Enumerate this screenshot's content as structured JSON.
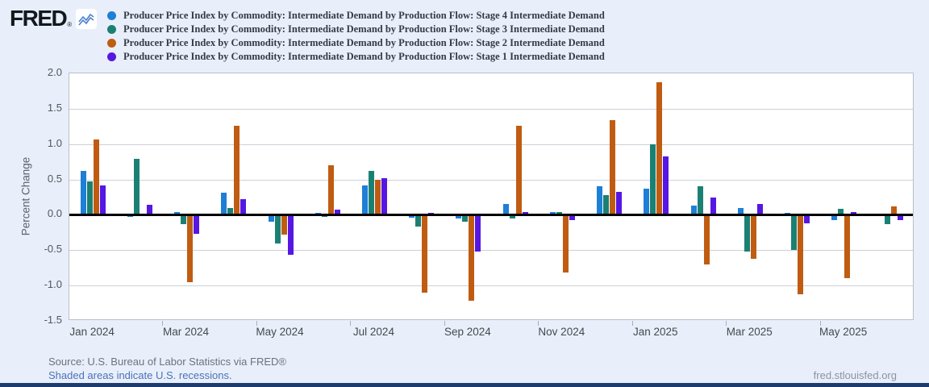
{
  "logo": {
    "text": "FRED",
    "registered": "®",
    "mark_icon": "line-chart-zigzag-icon"
  },
  "legend": {
    "items": [
      {
        "label": "Producer Price Index by Commodity: Intermediate Demand by Production Flow: Stage 4 Intermediate Demand",
        "color": "#1e7fd6"
      },
      {
        "label": "Producer Price Index by Commodity: Intermediate Demand by Production Flow: Stage 3 Intermediate Demand",
        "color": "#1b8074"
      },
      {
        "label": "Producer Price Index by Commodity: Intermediate Demand by Production Flow: Stage 2 Intermediate Demand",
        "color": "#c05c12"
      },
      {
        "label": "Producer Price Index by Commodity: Intermediate Demand by Production Flow: Stage 1 Intermediate Demand",
        "color": "#5617e3"
      }
    ]
  },
  "chart_data": {
    "type": "bar",
    "title": "",
    "ylabel": "Percent Change",
    "xlabel": "",
    "ylim": [
      -1.5,
      2.0
    ],
    "yticks": [
      "2.0",
      "1.5",
      "1.0",
      "0.5",
      "0.0",
      "-0.5",
      "-1.0",
      "-1.5"
    ],
    "grid": true,
    "legend_position": "top",
    "categories": [
      "Jan 2024",
      "Feb 2024",
      "Mar 2024",
      "Apr 2024",
      "May 2024",
      "Jun 2024",
      "Jul 2024",
      "Aug 2024",
      "Sep 2024",
      "Oct 2024",
      "Nov 2024",
      "Dec 2024",
      "Jan 2025",
      "Feb 2025",
      "Mar 2025",
      "Apr 2025",
      "May 2025",
      "Jun 2025"
    ],
    "x_tick_labels": [
      "Jan 2024",
      "Mar 2024",
      "May 2024",
      "Jul 2024",
      "Sep 2024",
      "Nov 2024",
      "Jan 2025",
      "Mar 2025",
      "May 2025"
    ],
    "series": [
      {
        "name": "Stage 4 Intermediate Demand",
        "color": "#1e7fd6",
        "values": [
          0.62,
          -0.03,
          0.04,
          0.31,
          -0.1,
          0.03,
          0.42,
          -0.04,
          -0.05,
          0.15,
          0.04,
          0.4,
          0.37,
          0.13,
          0.1,
          0.03,
          -0.07,
          -0.02
        ]
      },
      {
        "name": "Stage 3 Intermediate Demand",
        "color": "#1b8074",
        "values": [
          0.47,
          0.79,
          -0.13,
          0.1,
          -0.4,
          -0.03,
          0.62,
          -0.17,
          -0.1,
          -0.05,
          0.04,
          0.28,
          1.0,
          0.4,
          -0.52,
          -0.5,
          0.08,
          -0.13
        ]
      },
      {
        "name": "Stage 2 Intermediate Demand",
        "color": "#c05c12",
        "values": [
          1.06,
          0.0,
          -0.95,
          1.26,
          -0.28,
          0.7,
          0.5,
          -1.1,
          -1.21,
          1.26,
          -0.82,
          1.34,
          1.87,
          -0.7,
          -0.62,
          -1.12,
          -0.9,
          0.12
        ]
      },
      {
        "name": "Stage 1 Intermediate Demand",
        "color": "#5617e3",
        "values": [
          0.42,
          0.14,
          -0.27,
          0.22,
          -0.57,
          0.07,
          0.52,
          0.03,
          -0.52,
          0.04,
          -0.08,
          0.32,
          0.83,
          0.25,
          0.15,
          -0.12,
          0.04,
          -0.08
        ]
      }
    ]
  },
  "footer": {
    "source": "Source: U.S. Bureau of Labor Statistics via FRED®",
    "recessions_note": "Shaded areas indicate U.S. recessions.",
    "site": "fred.stlouisfed.org"
  }
}
